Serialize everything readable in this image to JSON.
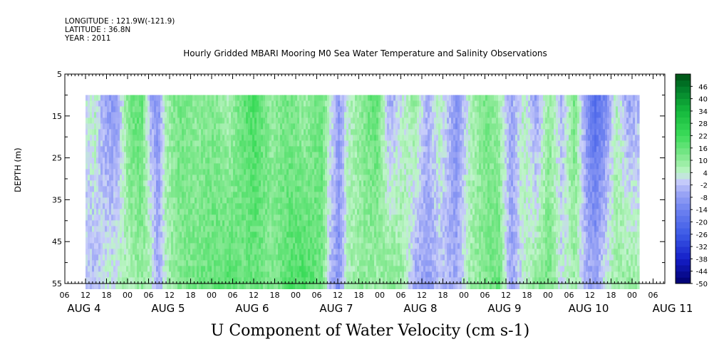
{
  "header": {
    "longitude": "LONGITUDE : 121.9W(-121.9)",
    "latitude": "LATITUDE : 36.8N",
    "year": "YEAR : 2011"
  },
  "chart_data": {
    "type": "heatmap",
    "title": "Hourly Gridded MBARI Mooring M0 Sea Water Temperature and Salinity Observations",
    "xlabel": "U Component of Water Velocity (cm s-1)",
    "ylabel": "DEPTH (m)",
    "ylim": [
      5,
      55
    ],
    "y_reversed": true,
    "yticks": [
      "5",
      "15",
      "25",
      "35",
      "45",
      "55"
    ],
    "x_hour_ticks": [
      "06",
      "12",
      "18",
      "00",
      "06",
      "12",
      "18",
      "00",
      "06",
      "12",
      "18",
      "00",
      "06",
      "12",
      "18",
      "00",
      "06",
      "12",
      "18",
      "00",
      "06",
      "12",
      "18",
      "00",
      "06",
      "12",
      "18",
      "00",
      "06",
      "12",
      "18",
      "00"
    ],
    "x_day_labels": [
      "AUG  4",
      "AUG  5",
      "AUG  6",
      "AUG  7",
      "AUG  8",
      "AUG  9",
      "AUG 10",
      "AUG 11"
    ],
    "data_start": "AUG 4 12:00",
    "data_end": "AUG 11 02:00",
    "data_depth_range": [
      10,
      55
    ],
    "colorbar": {
      "levels": [
        "46",
        "40",
        "34",
        "28",
        "22",
        "16",
        "10",
        "4",
        "-2",
        "-8",
        "-14",
        "-20",
        "-26",
        "-32",
        "-38",
        "-44",
        "-50"
      ],
      "range": [
        -50,
        52
      ]
    },
    "column_profiles": [
      {
        "day": 0.0,
        "top": 2,
        "bottom": -2
      },
      {
        "day": 0.1,
        "top": 6,
        "bottom": -4
      },
      {
        "day": 0.2,
        "top": -6,
        "bottom": 2
      },
      {
        "day": 0.35,
        "top": -10,
        "bottom": 4
      },
      {
        "day": 0.5,
        "top": 14,
        "bottom": 6
      },
      {
        "day": 0.65,
        "top": 18,
        "bottom": 10
      },
      {
        "day": 0.75,
        "top": -4,
        "bottom": 8
      },
      {
        "day": 0.85,
        "top": -10,
        "bottom": -6
      },
      {
        "day": 0.95,
        "top": 8,
        "bottom": 6
      },
      {
        "day": 1.1,
        "top": 14,
        "bottom": 12
      },
      {
        "day": 1.3,
        "top": 10,
        "bottom": 14
      },
      {
        "day": 1.5,
        "top": 12,
        "bottom": 16
      },
      {
        "day": 1.7,
        "top": 6,
        "bottom": 18
      },
      {
        "day": 1.85,
        "top": 16,
        "bottom": 14
      },
      {
        "day": 2.0,
        "top": 20,
        "bottom": 16
      },
      {
        "day": 2.2,
        "top": 10,
        "bottom": 12
      },
      {
        "day": 2.4,
        "top": 14,
        "bottom": 18
      },
      {
        "day": 2.6,
        "top": 8,
        "bottom": 20
      },
      {
        "day": 2.8,
        "top": 16,
        "bottom": 14
      },
      {
        "day": 2.9,
        "top": 4,
        "bottom": -4
      },
      {
        "day": 3.0,
        "top": -8,
        "bottom": -10
      },
      {
        "day": 3.1,
        "top": 4,
        "bottom": 6
      },
      {
        "day": 3.3,
        "top": 12,
        "bottom": 10
      },
      {
        "day": 3.45,
        "top": 18,
        "bottom": 8
      },
      {
        "day": 3.6,
        "top": -6,
        "bottom": 12
      },
      {
        "day": 3.75,
        "top": 2,
        "bottom": 10
      },
      {
        "day": 3.9,
        "top": 10,
        "bottom": -6
      },
      {
        "day": 4.05,
        "top": -4,
        "bottom": -8
      },
      {
        "day": 4.2,
        "top": 6,
        "bottom": -2
      },
      {
        "day": 4.4,
        "top": -10,
        "bottom": -6
      },
      {
        "day": 4.55,
        "top": 4,
        "bottom": 8
      },
      {
        "day": 4.75,
        "top": 14,
        "bottom": 12
      },
      {
        "day": 4.9,
        "top": 8,
        "bottom": 16
      },
      {
        "day": 5.05,
        "top": -6,
        "bottom": -8
      },
      {
        "day": 5.2,
        "top": 6,
        "bottom": 4
      },
      {
        "day": 5.35,
        "top": -8,
        "bottom": 10
      },
      {
        "day": 5.5,
        "top": 10,
        "bottom": 14
      },
      {
        "day": 5.65,
        "top": -4,
        "bottom": 2
      },
      {
        "day": 5.8,
        "top": 14,
        "bottom": 8
      },
      {
        "day": 5.95,
        "top": -10,
        "bottom": -4
      },
      {
        "day": 6.05,
        "top": -20,
        "bottom": -6
      },
      {
        "day": 6.15,
        "top": -14,
        "bottom": 2
      },
      {
        "day": 6.3,
        "top": 6,
        "bottom": 8
      },
      {
        "day": 6.45,
        "top": -8,
        "bottom": 10
      },
      {
        "day": 6.6,
        "top": -2,
        "bottom": 6
      }
    ]
  }
}
